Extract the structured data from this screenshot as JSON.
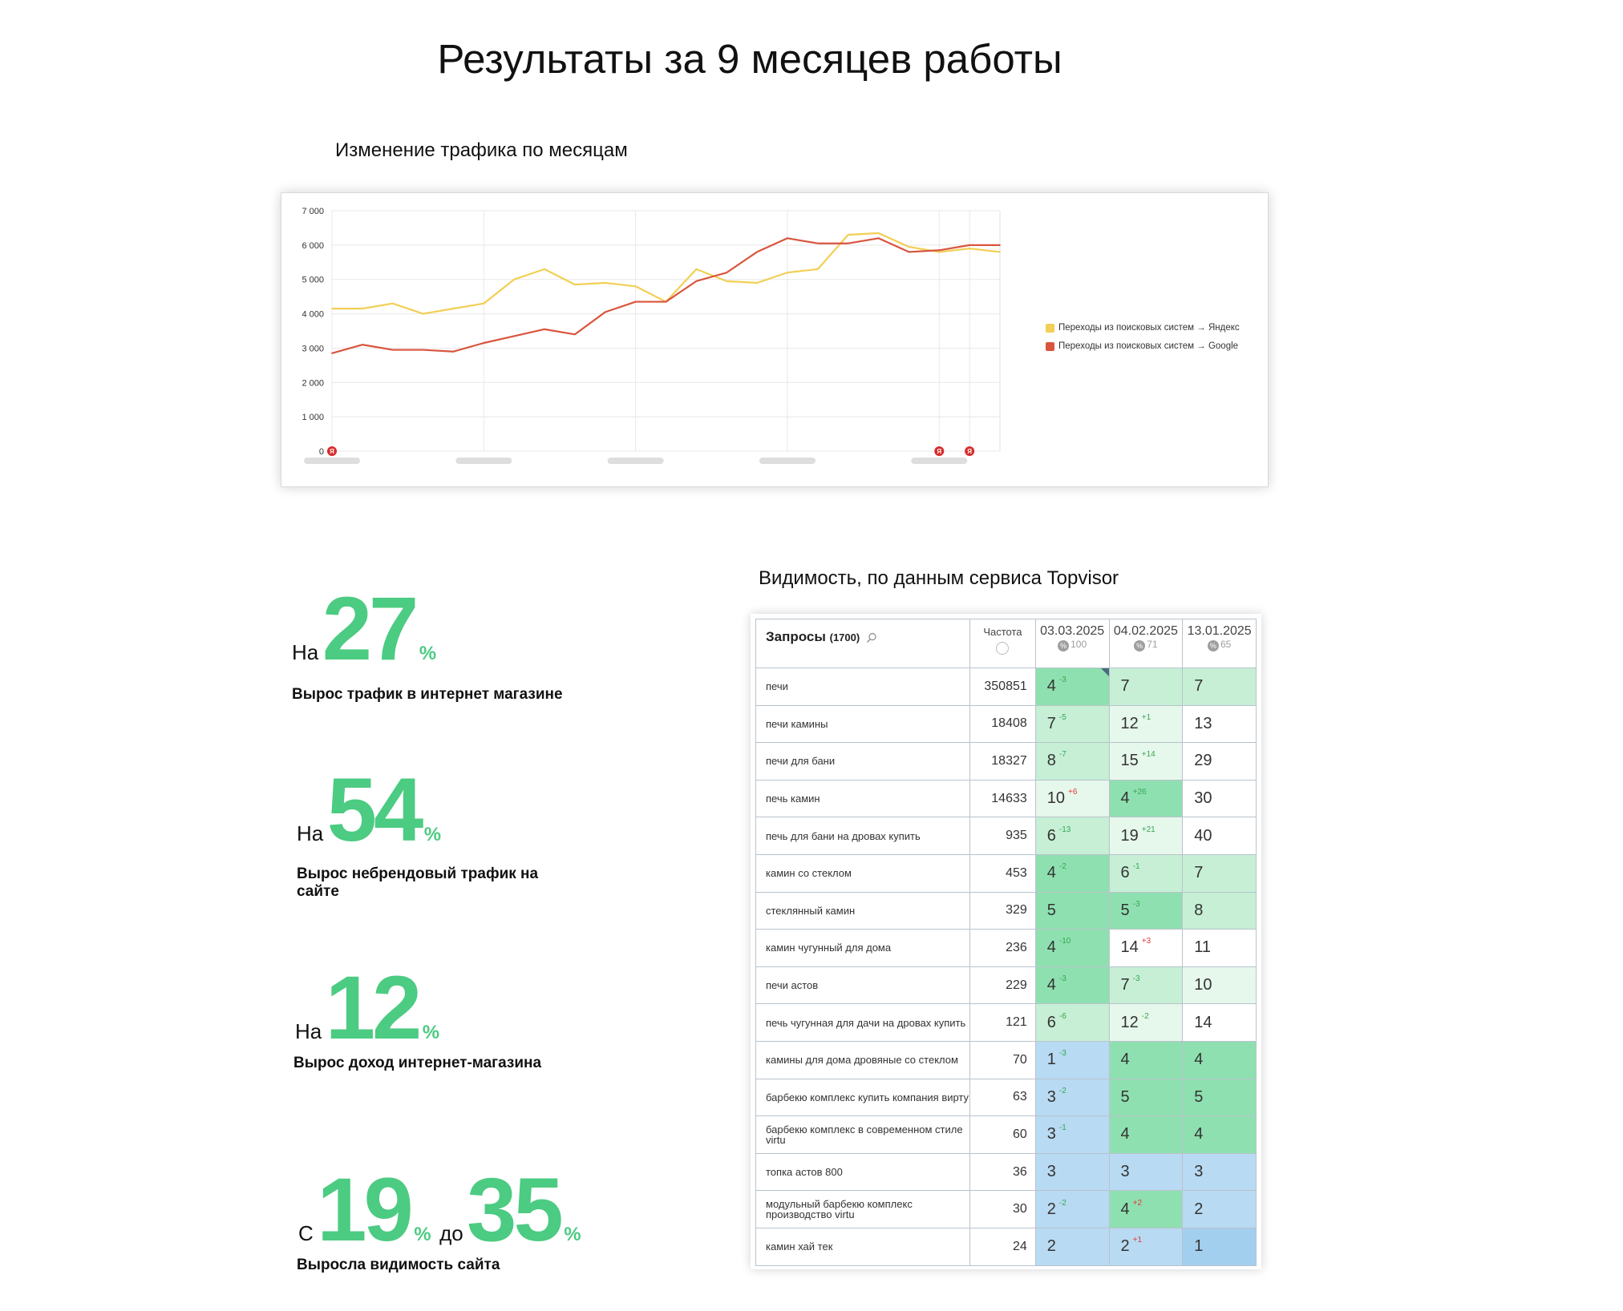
{
  "page": {
    "title": "Результаты за 9 месяцев работы",
    "chart_caption": "Изменение трафика по месяцам",
    "visibility_caption": "Видимость, по данным сервиса Topvisor"
  },
  "colors": {
    "accent_green": "#4ccb82",
    "yandex_line": "#f2cf55",
    "google_line": "#d9553e",
    "cell_green_strong": "#8fe0b0",
    "cell_green_light": "#c6efd5",
    "cell_green_pale": "#e6f7ec",
    "cell_blue": "#b8daf2",
    "cell_blue_strong": "#a3cfef"
  },
  "stats": [
    {
      "prefix": "На",
      "value": "27",
      "unit": "%",
      "description": "Вырос трафик в интернет магазине"
    },
    {
      "prefix": "На",
      "value": "54",
      "unit": "%",
      "description": "Вырос небрендовый трафик  на сайте"
    },
    {
      "prefix": "На",
      "value": "12",
      "unit": "%",
      "description": "Вырос доход интернет-магазина"
    },
    {
      "prefix": "С",
      "value": "19",
      "unit": "%",
      "prefix2": "до",
      "value2": "35",
      "unit2": "%",
      "description": "Выросла видимость сайта"
    }
  ],
  "chart_data": {
    "type": "line",
    "title": "",
    "xlabel": "",
    "ylabel": "",
    "ylim": [
      0,
      7000
    ],
    "yticks": [
      "0",
      "1 000",
      "2 000",
      "3 000",
      "4 000",
      "5 000",
      "6 000",
      "7 000"
    ],
    "grid": true,
    "legend_position": "right",
    "x_tick_labels_blurred": true,
    "series": [
      {
        "name": "Переходы из поисковых систем → Яндекс",
        "color": "#f2cf55",
        "values": [
          4150,
          4150,
          4300,
          4000,
          4150,
          4300,
          5000,
          5300,
          4850,
          4900,
          4800,
          4350,
          5300,
          4950,
          4900,
          5200,
          5300,
          6300,
          6350,
          5950,
          5800,
          5900,
          5800
        ]
      },
      {
        "name": "Переходы из поисковых систем → Google",
        "color": "#d9553e",
        "values": [
          2850,
          3100,
          2950,
          2950,
          2900,
          3150,
          3350,
          3550,
          3400,
          4050,
          4350,
          4350,
          4950,
          5200,
          5800,
          6200,
          6050,
          6050,
          6200,
          5800,
          5850,
          6000,
          6000
        ]
      }
    ],
    "markers": [
      {
        "index": 0,
        "label": "Я"
      },
      {
        "index": 20,
        "label": "Я"
      },
      {
        "index": 21,
        "label": "Я"
      }
    ]
  },
  "table": {
    "header": {
      "queries_label": "Запросы",
      "queries_count": "(1700)",
      "freq_label": "Частота",
      "dates": [
        {
          "date": "03.03.2025",
          "sub": "100"
        },
        {
          "date": "04.02.2025",
          "sub": "71"
        },
        {
          "date": "13.01.2025",
          "sub": "65"
        }
      ]
    },
    "rows": [
      {
        "query": "печи",
        "freq": "350851",
        "cells": [
          {
            "pos": "4",
            "delta": "-3",
            "dir": "up",
            "bg": "#8fe0b0",
            "mark": true
          },
          {
            "pos": "7",
            "delta": "",
            "dir": "",
            "bg": "#c6efd5"
          },
          {
            "pos": "7",
            "delta": "",
            "dir": "",
            "bg": "#c6efd5"
          }
        ]
      },
      {
        "query": "печи камины",
        "freq": "18408",
        "cells": [
          {
            "pos": "7",
            "delta": "-5",
            "dir": "up",
            "bg": "#c6efd5"
          },
          {
            "pos": "12",
            "delta": "+1",
            "dir": "up",
            "bg": "#e6f7ec"
          },
          {
            "pos": "13",
            "delta": "",
            "dir": "",
            "bg": "#ffffff"
          }
        ]
      },
      {
        "query": "печи для бани",
        "freq": "18327",
        "cells": [
          {
            "pos": "8",
            "delta": "-7",
            "dir": "up",
            "bg": "#c6efd5"
          },
          {
            "pos": "15",
            "delta": "+14",
            "dir": "up",
            "bg": "#e6f7ec"
          },
          {
            "pos": "29",
            "delta": "",
            "dir": "",
            "bg": "#ffffff"
          }
        ]
      },
      {
        "query": "печь камин",
        "freq": "14633",
        "cells": [
          {
            "pos": "10",
            "delta": "+6",
            "dir": "down",
            "bg": "#e6f7ec"
          },
          {
            "pos": "4",
            "delta": "+26",
            "dir": "up",
            "bg": "#8fe0b0"
          },
          {
            "pos": "30",
            "delta": "",
            "dir": "",
            "bg": "#ffffff"
          }
        ]
      },
      {
        "query": "печь для бани на дровах купить",
        "freq": "935",
        "cells": [
          {
            "pos": "6",
            "delta": "-13",
            "dir": "up",
            "bg": "#c6efd5"
          },
          {
            "pos": "19",
            "delta": "+21",
            "dir": "up",
            "bg": "#e6f7ec"
          },
          {
            "pos": "40",
            "delta": "",
            "dir": "",
            "bg": "#ffffff"
          }
        ]
      },
      {
        "query": "камин со стеклом",
        "freq": "453",
        "cells": [
          {
            "pos": "4",
            "delta": "-2",
            "dir": "up",
            "bg": "#8fe0b0"
          },
          {
            "pos": "6",
            "delta": "-1",
            "dir": "up",
            "bg": "#c6efd5"
          },
          {
            "pos": "7",
            "delta": "",
            "dir": "",
            "bg": "#c6efd5"
          }
        ]
      },
      {
        "query": "стеклянный камин",
        "freq": "329",
        "cells": [
          {
            "pos": "5",
            "delta": "",
            "dir": "",
            "bg": "#8fe0b0"
          },
          {
            "pos": "5",
            "delta": "-3",
            "dir": "up",
            "bg": "#8fe0b0"
          },
          {
            "pos": "8",
            "delta": "",
            "dir": "",
            "bg": "#c6efd5"
          }
        ]
      },
      {
        "query": "камин чугунный для дома",
        "freq": "236",
        "cells": [
          {
            "pos": "4",
            "delta": "-10",
            "dir": "up",
            "bg": "#8fe0b0"
          },
          {
            "pos": "14",
            "delta": "+3",
            "dir": "down",
            "bg": "#ffffff"
          },
          {
            "pos": "11",
            "delta": "",
            "dir": "",
            "bg": "#ffffff"
          }
        ]
      },
      {
        "query": "печи астов",
        "freq": "229",
        "cells": [
          {
            "pos": "4",
            "delta": "-3",
            "dir": "up",
            "bg": "#8fe0b0"
          },
          {
            "pos": "7",
            "delta": "-3",
            "dir": "up",
            "bg": "#c6efd5"
          },
          {
            "pos": "10",
            "delta": "",
            "dir": "",
            "bg": "#e6f7ec"
          }
        ]
      },
      {
        "query": "печь чугунная для дачи на дровах купить",
        "freq": "121",
        "cells": [
          {
            "pos": "6",
            "delta": "-6",
            "dir": "up",
            "bg": "#c6efd5"
          },
          {
            "pos": "12",
            "delta": "-2",
            "dir": "up",
            "bg": "#e6f7ec"
          },
          {
            "pos": "14",
            "delta": "",
            "dir": "",
            "bg": "#ffffff"
          }
        ]
      },
      {
        "query": "камины для дома дровяные со стеклом",
        "freq": "70",
        "cells": [
          {
            "pos": "1",
            "delta": "-3",
            "dir": "up",
            "bg": "#b8daf2"
          },
          {
            "pos": "4",
            "delta": "",
            "dir": "",
            "bg": "#8fe0b0"
          },
          {
            "pos": "4",
            "delta": "",
            "dir": "",
            "bg": "#8fe0b0"
          }
        ]
      },
      {
        "query": "барбекю комплекс купить компания вирту",
        "freq": "63",
        "cells": [
          {
            "pos": "3",
            "delta": "-2",
            "dir": "up",
            "bg": "#b8daf2"
          },
          {
            "pos": "5",
            "delta": "",
            "dir": "",
            "bg": "#8fe0b0"
          },
          {
            "pos": "5",
            "delta": "",
            "dir": "",
            "bg": "#8fe0b0"
          }
        ]
      },
      {
        "query": "барбекю комплекс в современном стиле virtu",
        "freq": "60",
        "cells": [
          {
            "pos": "3",
            "delta": "-1",
            "dir": "up",
            "bg": "#b8daf2"
          },
          {
            "pos": "4",
            "delta": "",
            "dir": "",
            "bg": "#8fe0b0"
          },
          {
            "pos": "4",
            "delta": "",
            "dir": "",
            "bg": "#8fe0b0"
          }
        ]
      },
      {
        "query": "топка астов 800",
        "freq": "36",
        "cells": [
          {
            "pos": "3",
            "delta": "",
            "dir": "",
            "bg": "#b8daf2"
          },
          {
            "pos": "3",
            "delta": "",
            "dir": "",
            "bg": "#b8daf2"
          },
          {
            "pos": "3",
            "delta": "",
            "dir": "",
            "bg": "#b8daf2"
          }
        ]
      },
      {
        "query": "модульный барбекю комплекс производство virtu",
        "freq": "30",
        "cells": [
          {
            "pos": "2",
            "delta": "-2",
            "dir": "up",
            "bg": "#b8daf2"
          },
          {
            "pos": "4",
            "delta": "+2",
            "dir": "down",
            "bg": "#8fe0b0"
          },
          {
            "pos": "2",
            "delta": "",
            "dir": "",
            "bg": "#b8daf2"
          }
        ]
      },
      {
        "query": "камин хай тек",
        "freq": "24",
        "cells": [
          {
            "pos": "2",
            "delta": "",
            "dir": "",
            "bg": "#b8daf2"
          },
          {
            "pos": "2",
            "delta": "+1",
            "dir": "down",
            "bg": "#b8daf2"
          },
          {
            "pos": "1",
            "delta": "",
            "dir": "",
            "bg": "#a3cfef"
          }
        ]
      }
    ]
  }
}
